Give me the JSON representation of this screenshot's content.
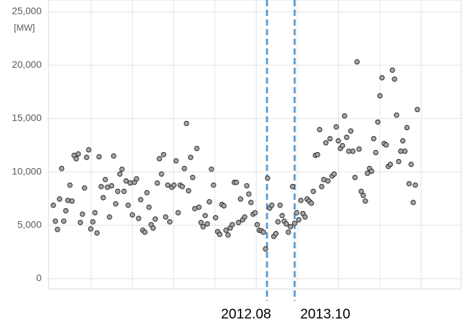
{
  "chart_data": {
    "type": "scatter",
    "y_label": "[MW]",
    "values": [
      6880,
      5390,
      4610,
      7460,
      10320,
      5390,
      6360,
      7330,
      8760,
      7270,
      11550,
      11230,
      11680,
      5260,
      6040,
      8500,
      11360,
      12070,
      4670,
      5320,
      6170,
      4280,
      11420,
      8630,
      7590,
      9280,
      8560,
      5780,
      8700,
      11490,
      7010,
      8180,
      9800,
      10250,
      8180,
      9150,
      6880,
      8960,
      5970,
      9020,
      9350,
      5650,
      7400,
      4540,
      4350,
      8050,
      6690,
      5060,
      4740,
      5580,
      8960,
      11230,
      9800,
      11620,
      5780,
      8760,
      5320,
      8560,
      8760,
      11040,
      6170,
      8760,
      8630,
      10320,
      14540,
      8240,
      11360,
      9480,
      6560,
      12200,
      6690,
      5260,
      4870,
      5910,
      5130,
      7200,
      10250,
      8760,
      5710,
      4410,
      4150,
      6950,
      6820,
      4540,
      4090,
      4740,
      5060,
      9020,
      9020,
      5260,
      7460,
      5520,
      5780,
      8700,
      7920,
      7140,
      6040,
      6170,
      5060,
      4540,
      4480,
      4350,
      2790,
      9410,
      6620,
      6880,
      3960,
      4220,
      5320,
      6880,
      5910,
      5390,
      5130,
      4350,
      4870,
      8630,
      5190,
      6170,
      5520,
      7330,
      6100,
      5780,
      7460,
      7270,
      7070,
      8180,
      11550,
      11620,
      13960,
      8630,
      9280,
      12720,
      9150,
      13110,
      9610,
      9800,
      14220,
      12910,
      12200,
      12460,
      15250,
      13240,
      11940,
      13830,
      11940,
      9480,
      20310,
      12140,
      8180,
      7790,
      7270,
      9870,
      10320,
      10060,
      13110,
      11810,
      14670,
      17130,
      18820,
      12660,
      12530,
      10510,
      10710,
      19530,
      18690,
      15320,
      10970,
      11940,
      12910,
      11940,
      14150,
      8890,
      10710,
      7140,
      8760,
      15840
    ],
    "marker_color": "#a6a6a6",
    "xlim": [
      -2.3,
      196
    ],
    "ylim": [
      0,
      25000
    ],
    "yticks": [
      0,
      {
        "value": 5000,
        "label": "5,000"
      },
      {
        "value": 10000,
        "label": "10,000"
      },
      {
        "value": 15000,
        "label": "15,000"
      },
      {
        "value": 20000,
        "label": "20,000"
      },
      {
        "value": 25000,
        "label": "25,000"
      }
    ],
    "grid": true,
    "annotations": [
      {
        "label": "2012.08",
        "x": 102.7,
        "color": "#5b9bd5"
      },
      {
        "label": "2013.10",
        "x": 116,
        "color": "#5b9bd5"
      }
    ]
  }
}
